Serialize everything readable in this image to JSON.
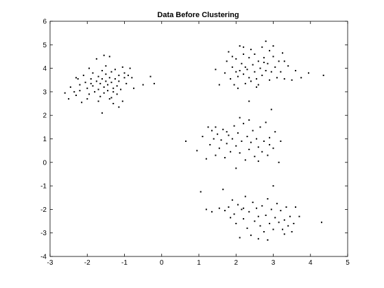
{
  "chart_data": {
    "type": "scatter",
    "title": "Data Before Clustering",
    "xlabel": "",
    "ylabel": "",
    "xlim": [
      -3,
      5
    ],
    "ylim": [
      -4,
      6
    ],
    "xticks": [
      -3,
      -2,
      -1,
      0,
      1,
      2,
      3,
      4,
      5
    ],
    "yticks": [
      -4,
      -3,
      -2,
      -1,
      0,
      1,
      2,
      3,
      4,
      5,
      6
    ],
    "grid": false,
    "marker_color": "#000000",
    "series": [
      {
        "points": [
          [
            -2.6,
            2.95
          ],
          [
            -2.5,
            2.7
          ],
          [
            -2.45,
            3.2
          ],
          [
            -2.35,
            3.0
          ],
          [
            -2.3,
            2.85
          ],
          [
            -2.25,
            3.55
          ],
          [
            -2.2,
            3.3
          ],
          [
            -2.2,
            3.05
          ],
          [
            -2.15,
            2.55
          ],
          [
            -2.1,
            3.7
          ],
          [
            -2.05,
            3.4
          ],
          [
            -2.0,
            3.15
          ],
          [
            -1.95,
            2.9
          ],
          [
            -1.9,
            3.55
          ],
          [
            -1.85,
            3.8
          ],
          [
            -1.85,
            3.25
          ],
          [
            -1.8,
            3.0
          ],
          [
            -1.75,
            3.45
          ],
          [
            -1.75,
            4.4
          ],
          [
            -1.7,
            3.65
          ],
          [
            -1.7,
            3.1
          ],
          [
            -1.65,
            2.8
          ],
          [
            -1.65,
            3.35
          ],
          [
            -1.6,
            3.55
          ],
          [
            -1.6,
            3.9
          ],
          [
            -1.55,
            3.2
          ],
          [
            -1.55,
            2.95
          ],
          [
            -1.5,
            3.45
          ],
          [
            -1.5,
            3.75
          ],
          [
            -1.5,
            4.1
          ],
          [
            -1.45,
            3.3
          ],
          [
            -1.45,
            3.05
          ],
          [
            -1.4,
            3.6
          ],
          [
            -1.4,
            2.7
          ],
          [
            -1.4,
            4.5
          ],
          [
            -1.35,
            3.4
          ],
          [
            -1.35,
            3.85
          ],
          [
            -1.3,
            3.15
          ],
          [
            -1.3,
            2.5
          ],
          [
            -1.25,
            3.55
          ],
          [
            -1.25,
            3.95
          ],
          [
            -1.2,
            3.25
          ],
          [
            -1.2,
            2.9
          ],
          [
            -1.15,
            3.7
          ],
          [
            -1.15,
            3.45
          ],
          [
            -1.1,
            3.1
          ],
          [
            -1.05,
            2.6
          ],
          [
            -1.0,
            3.6
          ],
          [
            -1.0,
            3.8
          ],
          [
            -0.95,
            3.35
          ],
          [
            -0.9,
            3.7
          ],
          [
            -0.85,
            4.0
          ],
          [
            -0.8,
            3.6
          ],
          [
            -0.75,
            3.15
          ],
          [
            -0.5,
            3.3
          ],
          [
            -0.3,
            3.65
          ],
          [
            -0.2,
            3.35
          ],
          [
            -1.6,
            2.1
          ],
          [
            -1.15,
            2.35
          ],
          [
            -1.95,
            4.0
          ],
          [
            -2.3,
            3.6
          ],
          [
            -1.7,
            2.6
          ],
          [
            -1.3,
            3.0
          ],
          [
            -1.55,
            4.55
          ],
          [
            -1.9,
            3.35
          ],
          [
            -1.05,
            4.05
          ],
          [
            -1.35,
            2.75
          ],
          [
            -2.0,
            2.7
          ]
        ]
      },
      {
        "points": [
          [
            1.45,
            3.95
          ],
          [
            1.55,
            3.3
          ],
          [
            1.7,
            3.8
          ],
          [
            1.75,
            4.3
          ],
          [
            1.8,
            4.7
          ],
          [
            1.85,
            3.55
          ],
          [
            1.9,
            4.05
          ],
          [
            1.95,
            3.3
          ],
          [
            2.0,
            4.4
          ],
          [
            2.0,
            3.85
          ],
          [
            2.05,
            3.65
          ],
          [
            2.1,
            4.95
          ],
          [
            2.1,
            3.9
          ],
          [
            2.15,
            4.2
          ],
          [
            2.2,
            3.75
          ],
          [
            2.2,
            4.6
          ],
          [
            2.25,
            3.35
          ],
          [
            2.25,
            4.05
          ],
          [
            2.3,
            3.95
          ],
          [
            2.35,
            4.45
          ],
          [
            2.35,
            3.6
          ],
          [
            2.4,
            4.8
          ],
          [
            2.4,
            3.45
          ],
          [
            2.45,
            4.15
          ],
          [
            2.5,
            3.85
          ],
          [
            2.5,
            4.6
          ],
          [
            2.55,
            3.55
          ],
          [
            2.6,
            4.3
          ],
          [
            2.6,
            3.3
          ],
          [
            2.65,
            4.0
          ],
          [
            2.7,
            4.9
          ],
          [
            2.7,
            3.7
          ],
          [
            2.75,
            4.45
          ],
          [
            2.8,
            3.9
          ],
          [
            2.8,
            5.15
          ],
          [
            2.85,
            4.2
          ],
          [
            2.9,
            3.5
          ],
          [
            2.9,
            4.75
          ],
          [
            2.95,
            3.85
          ],
          [
            3.0,
            4.5
          ],
          [
            3.05,
            4.05
          ],
          [
            3.1,
            3.6
          ],
          [
            3.15,
            4.3
          ],
          [
            3.2,
            3.85
          ],
          [
            3.25,
            4.65
          ],
          [
            3.3,
            3.55
          ],
          [
            3.4,
            4.1
          ],
          [
            3.5,
            3.5
          ],
          [
            3.6,
            3.9
          ],
          [
            3.75,
            3.6
          ],
          [
            3.95,
            3.8
          ],
          [
            4.35,
            3.7
          ],
          [
            2.2,
            4.9
          ],
          [
            2.55,
            3.2
          ],
          [
            3.0,
            4.95
          ],
          [
            2.35,
            2.6
          ],
          [
            1.9,
            4.5
          ],
          [
            2.75,
            4.25
          ],
          [
            3.3,
            4.3
          ],
          [
            2.05,
            3.15
          ]
        ]
      },
      {
        "points": [
          [
            0.65,
            0.9
          ],
          [
            0.95,
            0.5
          ],
          [
            1.1,
            1.1
          ],
          [
            1.2,
            0.15
          ],
          [
            1.25,
            1.5
          ],
          [
            1.3,
            0.75
          ],
          [
            1.35,
            1.35
          ],
          [
            1.4,
            1.0
          ],
          [
            1.45,
            0.3
          ],
          [
            1.5,
            1.2
          ],
          [
            1.55,
            0.6
          ],
          [
            1.6,
            0.95
          ],
          [
            1.65,
            1.4
          ],
          [
            1.7,
            0.2
          ],
          [
            1.75,
            0.8
          ],
          [
            1.8,
            1.15
          ],
          [
            1.85,
            0.45
          ],
          [
            1.9,
            1.0
          ],
          [
            1.95,
            1.55
          ],
          [
            2.0,
            0.7
          ],
          [
            2.0,
            -0.25
          ],
          [
            2.05,
            1.25
          ],
          [
            2.1,
            0.4
          ],
          [
            2.15,
            0.9
          ],
          [
            2.2,
            1.65
          ],
          [
            2.25,
            0.1
          ],
          [
            2.3,
            1.1
          ],
          [
            2.35,
            0.55
          ],
          [
            2.4,
            0.85
          ],
          [
            2.45,
            1.35
          ],
          [
            2.5,
            0.25
          ],
          [
            2.55,
            1.0
          ],
          [
            2.6,
            0.65
          ],
          [
            2.65,
            1.5
          ],
          [
            2.7,
            0.45
          ],
          [
            2.75,
            0.9
          ],
          [
            2.8,
            1.7
          ],
          [
            2.85,
            0.3
          ],
          [
            2.9,
            1.05
          ],
          [
            2.95,
            2.25
          ],
          [
            3.0,
            0.6
          ],
          [
            3.05,
            1.3
          ],
          [
            3.15,
            0.0
          ],
          [
            3.2,
            0.9
          ],
          [
            2.1,
            1.9
          ],
          [
            1.45,
            1.5
          ],
          [
            2.6,
            0.05
          ],
          [
            2.35,
            1.8
          ],
          [
            1.75,
            1.3
          ],
          [
            2.9,
            0.75
          ]
        ]
      },
      {
        "points": [
          [
            1.05,
            -1.25
          ],
          [
            1.2,
            -2.0
          ],
          [
            1.35,
            -2.1
          ],
          [
            1.55,
            -1.95
          ],
          [
            1.65,
            -1.15
          ],
          [
            1.7,
            -2.05
          ],
          [
            1.8,
            -1.9
          ],
          [
            1.85,
            -2.35
          ],
          [
            1.9,
            -1.6
          ],
          [
            1.95,
            -2.2
          ],
          [
            2.0,
            -2.6
          ],
          [
            2.05,
            -1.8
          ],
          [
            2.1,
            -3.2
          ],
          [
            2.15,
            -2.0
          ],
          [
            2.2,
            -2.4
          ],
          [
            2.25,
            -1.45
          ],
          [
            2.3,
            -2.8
          ],
          [
            2.35,
            -2.1
          ],
          [
            2.4,
            -3.1
          ],
          [
            2.45,
            -1.7
          ],
          [
            2.5,
            -2.5
          ],
          [
            2.55,
            -1.95
          ],
          [
            2.6,
            -3.25
          ],
          [
            2.6,
            -2.3
          ],
          [
            2.65,
            -2.7
          ],
          [
            2.7,
            -1.85
          ],
          [
            2.75,
            -2.95
          ],
          [
            2.8,
            -2.25
          ],
          [
            2.85,
            -3.3
          ],
          [
            2.85,
            -1.55
          ],
          [
            2.9,
            -2.6
          ],
          [
            2.95,
            -2.0
          ],
          [
            3.0,
            -1.0
          ],
          [
            3.0,
            -2.85
          ],
          [
            3.05,
            -2.35
          ],
          [
            3.1,
            -1.75
          ],
          [
            3.15,
            -2.55
          ],
          [
            3.2,
            -2.05
          ],
          [
            3.25,
            -2.85
          ],
          [
            3.3,
            -2.45
          ],
          [
            3.35,
            -1.9
          ],
          [
            3.4,
            -2.7
          ],
          [
            3.45,
            -2.3
          ],
          [
            3.5,
            -2.95
          ],
          [
            3.55,
            -2.6
          ],
          [
            3.6,
            -1.9
          ],
          [
            3.7,
            -2.3
          ],
          [
            4.3,
            -2.55
          ],
          [
            2.2,
            -1.95
          ],
          [
            3.3,
            -3.05
          ]
        ]
      }
    ]
  }
}
